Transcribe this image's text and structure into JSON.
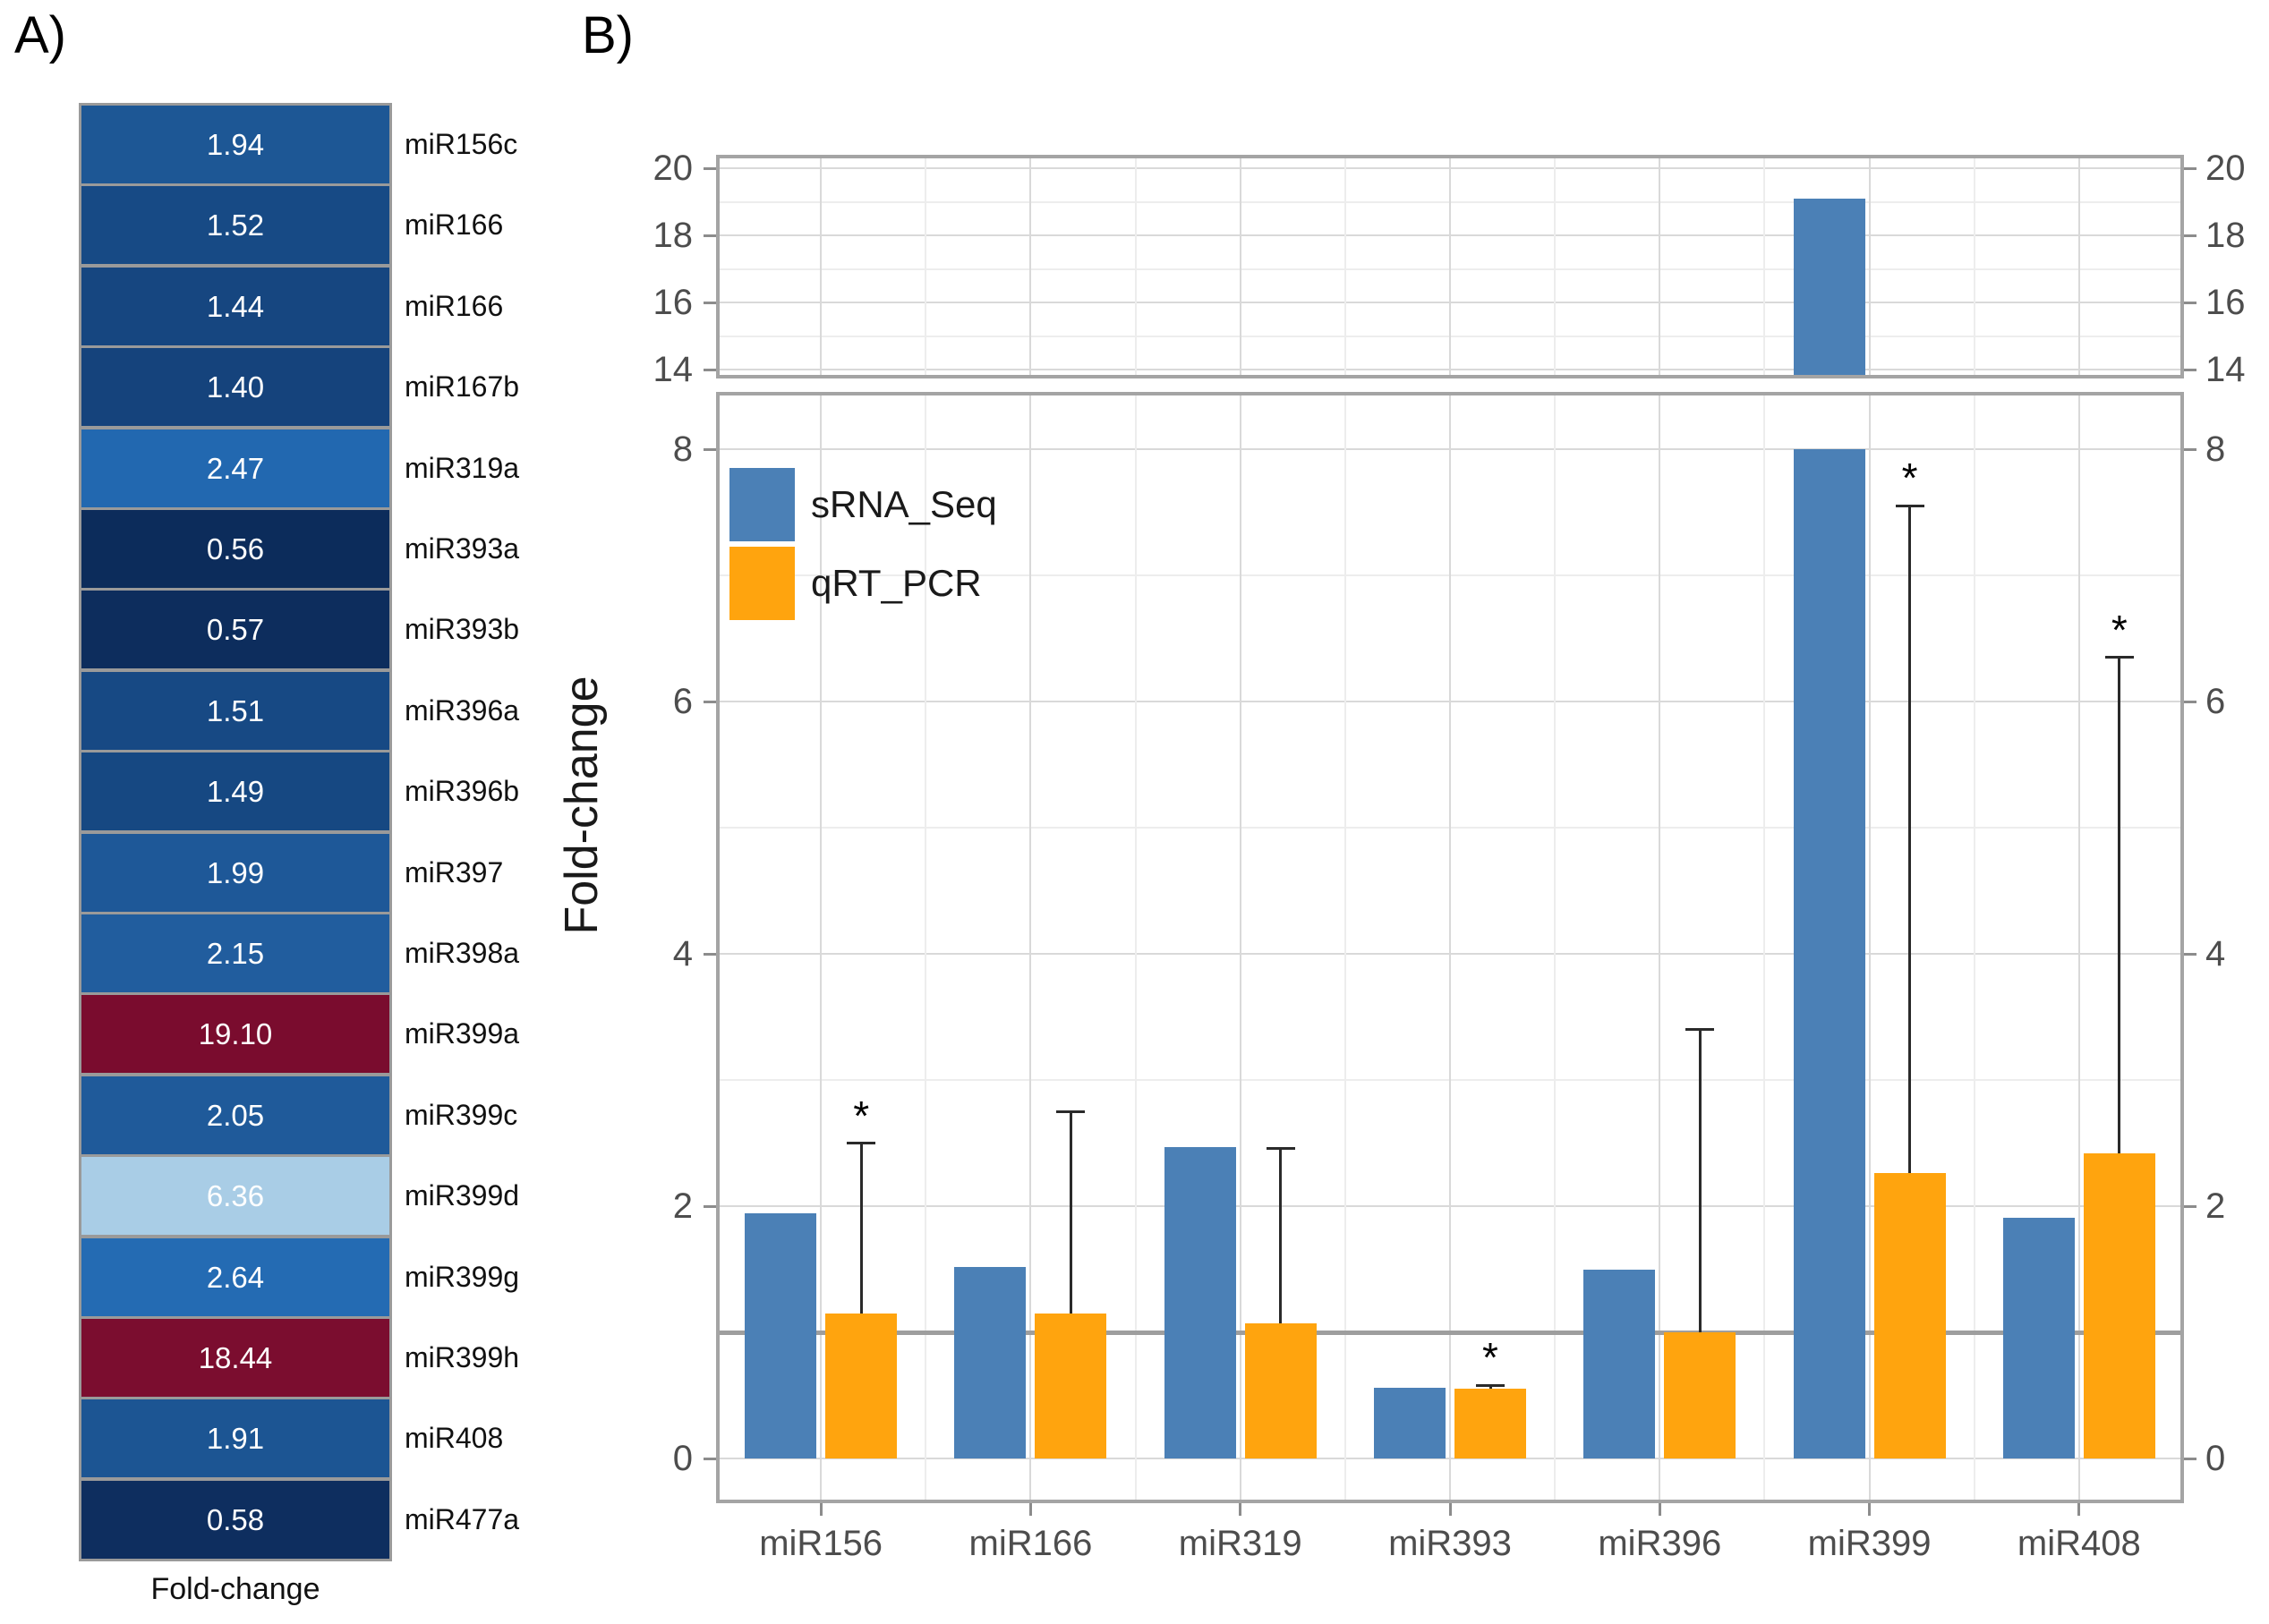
{
  "figure": {
    "panel_a_label": "A)",
    "panel_b_label": "B)"
  },
  "panel_a": {
    "xlabel": "Fold-change",
    "rows": [
      {
        "label": "miR156c",
        "value": "1.94",
        "color": "#1d5795"
      },
      {
        "label": "miR166",
        "value": "1.52",
        "color": "#174a85"
      },
      {
        "label": "miR166",
        "value": "1.44",
        "color": "#164680"
      },
      {
        "label": "miR167b",
        "value": "1.40",
        "color": "#15437c"
      },
      {
        "label": "miR319a",
        "value": "2.47",
        "color": "#2268b0"
      },
      {
        "label": "miR393a",
        "value": "0.56",
        "color": "#0c2c5b"
      },
      {
        "label": "miR393b",
        "value": "0.57",
        "color": "#0d2d5d"
      },
      {
        "label": "miR396a",
        "value": "1.51",
        "color": "#174984"
      },
      {
        "label": "miR396b",
        "value": "1.49",
        "color": "#164882"
      },
      {
        "label": "miR397",
        "value": "1.99",
        "color": "#1e5898"
      },
      {
        "label": "miR398a",
        "value": "2.15",
        "color": "#215d9e"
      },
      {
        "label": "miR399a",
        "value": "19.10",
        "color": "#7a0c2e"
      },
      {
        "label": "miR399c",
        "value": "2.05",
        "color": "#1f5a9a"
      },
      {
        "label": "miR399d",
        "value": "6.36",
        "color": "#a9cde6"
      },
      {
        "label": "miR399g",
        "value": "2.64",
        "color": "#246bb3"
      },
      {
        "label": "miR399h",
        "value": "18.44",
        "color": "#7b0d2f"
      },
      {
        "label": "miR408",
        "value": "1.91",
        "color": "#1c5593"
      },
      {
        "label": "miR477a",
        "value": "0.58",
        "color": "#0e2e5f"
      }
    ]
  },
  "panel_b": {
    "ylabel": "Fold-change",
    "legend": [
      {
        "label": "sRNA_Seq",
        "color": "#4b80b6"
      },
      {
        "label": "qRT_PCR",
        "color": "#ffa40e"
      }
    ],
    "categories": [
      "miR156",
      "miR166",
      "miR319",
      "miR393",
      "miR396",
      "miR399",
      "miR408"
    ],
    "sRNA_Seq": [
      1.94,
      1.52,
      2.47,
      0.56,
      1.5,
      19.1,
      1.91
    ],
    "qRT_PCR": [
      1.15,
      1.15,
      1.07,
      0.55,
      1.0,
      2.26,
      2.42
    ],
    "qRT_PCR_error_upper": [
      2.5,
      2.75,
      2.46,
      0.58,
      3.4,
      7.55,
      6.35
    ],
    "significant": [
      true,
      false,
      false,
      true,
      false,
      true,
      true
    ],
    "upper_axis_ticks": [
      20,
      18,
      16,
      14
    ],
    "lower_axis_ticks": [
      8,
      6,
      4,
      2,
      0
    ],
    "reference_line": 1
  },
  "chart_data": [
    {
      "type": "heatmap",
      "title": "A)",
      "xlabel": "Fold-change",
      "rows": [
        "miR156c",
        "miR166",
        "miR166",
        "miR167b",
        "miR319a",
        "miR393a",
        "miR393b",
        "miR396a",
        "miR396b",
        "miR397",
        "miR398a",
        "miR399a",
        "miR399c",
        "miR399d",
        "miR399g",
        "miR399h",
        "miR408",
        "miR477a"
      ],
      "values": [
        1.94,
        1.52,
        1.44,
        1.4,
        2.47,
        0.56,
        0.57,
        1.51,
        1.49,
        1.99,
        2.15,
        19.1,
        2.05,
        6.36,
        2.64,
        18.44,
        1.91,
        0.58
      ],
      "colormap": "low=dark-navy, mid=blue, high-mid=light-blue, extreme-high=dark-red"
    },
    {
      "type": "bar",
      "title": "B)",
      "categories": [
        "miR156",
        "miR166",
        "miR319",
        "miR393",
        "miR396",
        "miR399",
        "miR408"
      ],
      "series": [
        {
          "name": "sRNA_Seq",
          "color": "#4b80b6",
          "values": [
            1.94,
            1.52,
            2.47,
            0.56,
            1.5,
            19.1,
            1.91
          ]
        },
        {
          "name": "qRT_PCR",
          "color": "#ffa40e",
          "values": [
            1.15,
            1.15,
            1.07,
            0.55,
            1.0,
            2.26,
            2.42
          ],
          "error_upper": [
            2.5,
            2.75,
            2.46,
            0.58,
            3.4,
            7.55,
            6.35
          ],
          "significant": [
            true,
            false,
            false,
            true,
            false,
            true,
            true
          ]
        }
      ],
      "xlabel": "",
      "ylabel": "Fold-change",
      "broken_axis": {
        "lower_ylim": [
          0,
          8
        ],
        "upper_ylim": [
          14,
          20
        ],
        "lower_ticks": [
          0,
          2,
          4,
          6,
          8
        ],
        "upper_ticks": [
          14,
          16,
          18,
          20
        ]
      },
      "reference_line_y": 1,
      "grid": true,
      "legend_position": "top-left-inside",
      "axis_labels_both_sides": true
    }
  ],
  "colors": {
    "bar_blue": "#4b80b6",
    "bar_orange": "#ffa40e",
    "grid_major": "#d9d9d9",
    "grid_minor": "#ededed",
    "reference_line": "#9e9e9e",
    "panel_border": "#a4a4a4",
    "tick_mark": "#8c8c8c",
    "tick_label": "#4d4d4d",
    "heatmap_border": "#9a9a9a",
    "error_bar": "#2a2a2a"
  }
}
